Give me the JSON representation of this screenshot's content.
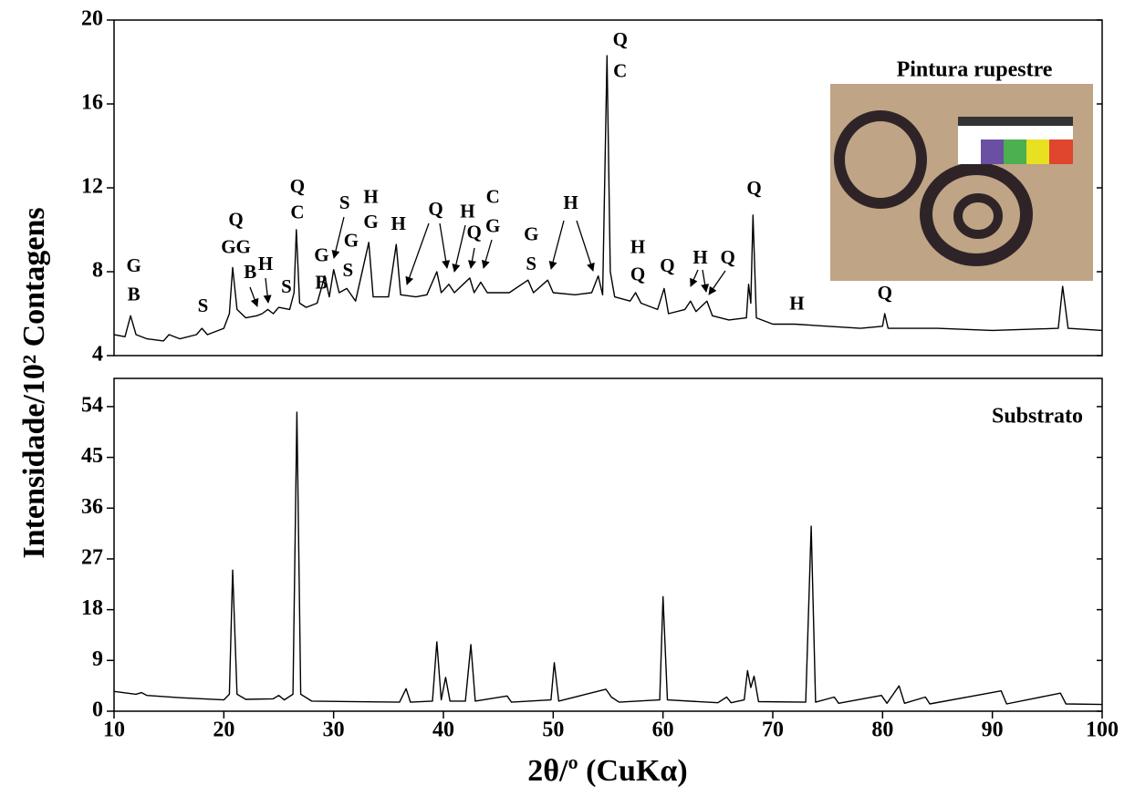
{
  "chart_data": [
    {
      "type": "line",
      "label": "Pintura rupestre",
      "ylabel": "Intensidade/10² Contagens",
      "xlim": [
        10,
        100
      ],
      "ylim": [
        4,
        20
      ],
      "yticks": [
        4,
        8,
        12,
        16,
        20
      ],
      "x": [
        10,
        11,
        11.5,
        12,
        13,
        14.5,
        15,
        16,
        17.5,
        18,
        18.5,
        20,
        20.5,
        20.8,
        21.2,
        22,
        23,
        23.5,
        24,
        24.5,
        25,
        26,
        26.4,
        26.6,
        26.9,
        27.5,
        28.5,
        29.2,
        29.6,
        30,
        30.5,
        31.2,
        32,
        33.2,
        33.6,
        35,
        35.7,
        36.1,
        37.5,
        38.5,
        39.4,
        39.8,
        40.5,
        41,
        42.4,
        42.8,
        43.4,
        44,
        46,
        47.7,
        48.2,
        49.5,
        50,
        52,
        53.5,
        54.1,
        54.5,
        54.9,
        55.2,
        55.6,
        57,
        57.5,
        58,
        59.5,
        60.1,
        60.5,
        62,
        62.5,
        63,
        64,
        64.5,
        66,
        67.6,
        67.8,
        68,
        68.2,
        68.5,
        70,
        72,
        75,
        78,
        80,
        80.2,
        80.5,
        85,
        90,
        96,
        96.4,
        96.6,
        96.9,
        100
      ],
      "series": [
        {
          "color": "#000000",
          "values": [
            5.0,
            4.9,
            5.9,
            5.0,
            4.8,
            4.7,
            5.0,
            4.8,
            5.0,
            5.3,
            5.0,
            5.3,
            6.0,
            8.2,
            6.2,
            5.8,
            5.9,
            6.0,
            6.2,
            6.0,
            6.3,
            6.2,
            7.0,
            10.0,
            6.5,
            6.3,
            6.5,
            7.8,
            6.8,
            8.1,
            7.0,
            7.2,
            6.6,
            9.4,
            6.8,
            6.8,
            9.3,
            6.9,
            6.8,
            6.9,
            8.0,
            7.0,
            7.4,
            7.0,
            7.7,
            7.0,
            7.5,
            7.0,
            7.0,
            7.6,
            7.0,
            7.6,
            7.0,
            6.9,
            7.0,
            7.8,
            6.9,
            18.3,
            8.0,
            6.8,
            6.6,
            7.0,
            6.5,
            6.2,
            7.2,
            6.0,
            6.2,
            6.6,
            6.1,
            6.6,
            5.9,
            5.7,
            5.8,
            7.4,
            6.5,
            10.7,
            5.8,
            5.5,
            5.5,
            5.4,
            5.3,
            5.4,
            6.0,
            5.3,
            5.3,
            5.2,
            5.3,
            7.3,
            6.5,
            5.3,
            5.2
          ]
        }
      ],
      "annotations": [
        {
          "text": "G",
          "x": 11.8,
          "y": 8.2
        },
        {
          "text": "B",
          "x": 11.8,
          "y": 6.85
        },
        {
          "text": "S",
          "x": 18.1,
          "y": 6.3
        },
        {
          "text": "Q",
          "x": 21.1,
          "y": 10.4
        },
        {
          "text": "GG",
          "x": 21.1,
          "y": 9.1
        },
        {
          "text": "B",
          "x": 22.4,
          "y": 7.9
        },
        {
          "text": "H",
          "x": 23.8,
          "y": 8.3
        },
        {
          "text": "S",
          "x": 25.7,
          "y": 7.2
        },
        {
          "text": "Q",
          "x": 26.7,
          "y": 12.0
        },
        {
          "text": "C",
          "x": 26.7,
          "y": 10.75
        },
        {
          "text": "G",
          "x": 28.9,
          "y": 8.7
        },
        {
          "text": "B",
          "x": 28.9,
          "y": 7.4
        },
        {
          "text": "S",
          "x": 31.0,
          "y": 11.2
        },
        {
          "text": "G",
          "x": 31.6,
          "y": 9.4
        },
        {
          "text": "S",
          "x": 31.3,
          "y": 8.0
        },
        {
          "text": "H",
          "x": 33.4,
          "y": 11.5
        },
        {
          "text": "G",
          "x": 33.4,
          "y": 10.3
        },
        {
          "text": "H",
          "x": 35.9,
          "y": 10.2
        },
        {
          "text": "Q",
          "x": 39.3,
          "y": 10.9
        },
        {
          "text": "H",
          "x": 42.2,
          "y": 10.8
        },
        {
          "text": "Q",
          "x": 42.8,
          "y": 9.8
        },
        {
          "text": "C",
          "x": 44.5,
          "y": 11.5
        },
        {
          "text": "G",
          "x": 44.5,
          "y": 10.1
        },
        {
          "text": "G",
          "x": 48.0,
          "y": 9.7
        },
        {
          "text": "S",
          "x": 48.0,
          "y": 8.3
        },
        {
          "text": "H",
          "x": 51.6,
          "y": 11.2
        },
        {
          "text": "Q",
          "x": 56.1,
          "y": 19.0
        },
        {
          "text": "C",
          "x": 56.1,
          "y": 17.5
        },
        {
          "text": "H",
          "x": 57.7,
          "y": 9.1
        },
        {
          "text": "Q",
          "x": 57.7,
          "y": 7.8
        },
        {
          "text": "Q",
          "x": 60.4,
          "y": 8.2
        },
        {
          "text": "H",
          "x": 63.4,
          "y": 8.6
        },
        {
          "text": "Q",
          "x": 65.9,
          "y": 8.6
        },
        {
          "text": "Q",
          "x": 68.3,
          "y": 11.9
        },
        {
          "text": "H",
          "x": 72.2,
          "y": 6.4
        },
        {
          "text": "Q",
          "x": 80.2,
          "y": 6.9
        }
      ]
    },
    {
      "type": "line",
      "label": "Substrato",
      "xlabel": "2θ/º (CuKα)",
      "xlim": [
        10,
        100
      ],
      "xticks": [
        10,
        20,
        30,
        40,
        50,
        60,
        70,
        80,
        90,
        100
      ],
      "ylim": [
        0,
        59
      ],
      "yticks": [
        0,
        9,
        18,
        27,
        36,
        45,
        54
      ],
      "x": [
        10,
        12,
        12.5,
        13,
        16,
        20,
        20.5,
        20.8,
        21.2,
        22,
        24.5,
        25,
        25.5,
        26.3,
        26.65,
        27,
        28,
        36,
        36.6,
        37,
        39,
        39.4,
        39.8,
        40.2,
        40.6,
        42,
        42.5,
        42.9,
        45.8,
        46.2,
        49.8,
        50.1,
        50.5,
        54.8,
        55.3,
        56,
        59.7,
        60,
        60.4,
        65,
        65.8,
        66.2,
        67.4,
        67.7,
        68,
        68.3,
        68.7,
        73,
        73.5,
        73.9,
        75.6,
        76,
        79.9,
        80.4,
        81.5,
        82,
        83.9,
        84.3,
        90.8,
        91.3,
        96.2,
        96.7,
        100
      ],
      "series": [
        {
          "color": "#000000",
          "values": [
            3.5,
            3.0,
            3.3,
            2.8,
            2.4,
            2.0,
            3.0,
            25.0,
            3.0,
            2.1,
            2.2,
            2.8,
            2.0,
            3.0,
            53,
            3.0,
            1.8,
            1.6,
            4.0,
            1.6,
            1.8,
            12.3,
            2.0,
            6.0,
            1.8,
            1.8,
            11.8,
            1.8,
            2.7,
            1.6,
            2.0,
            8.6,
            1.8,
            3.9,
            2.5,
            1.6,
            2.0,
            20.3,
            2.0,
            1.5,
            2.5,
            1.5,
            2.0,
            7.2,
            4.2,
            6.2,
            1.7,
            1.6,
            32.8,
            1.6,
            2.5,
            1.4,
            2.8,
            1.4,
            4.5,
            1.4,
            2.5,
            1.3,
            3.6,
            1.3,
            3.2,
            1.3,
            1.2
          ]
        }
      ]
    }
  ]
}
